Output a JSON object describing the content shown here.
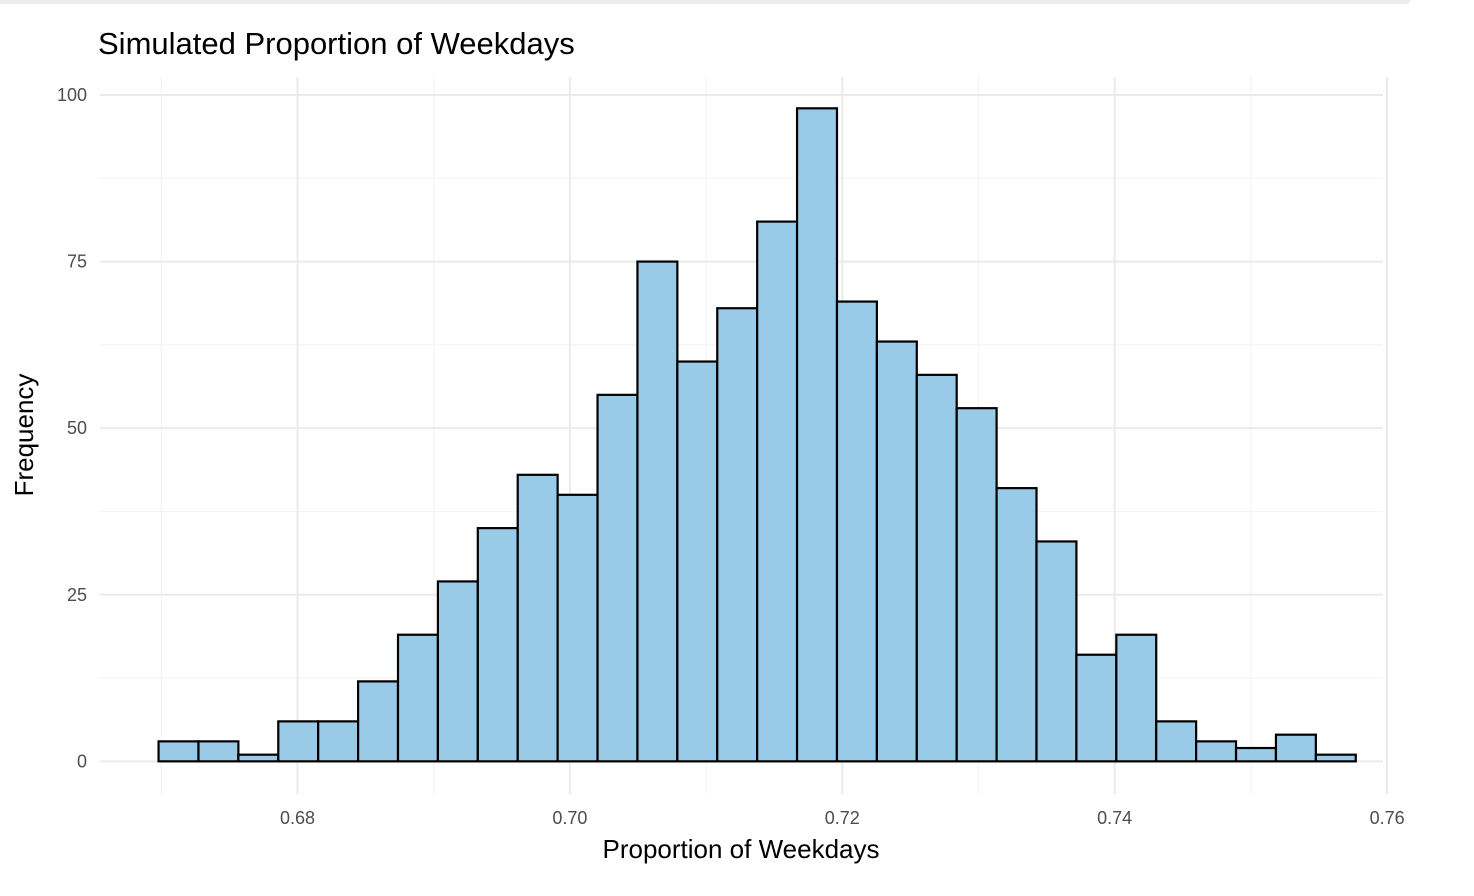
{
  "chart_data": {
    "type": "bar",
    "title": "Simulated Proportion of Weekdays",
    "xlabel": "Proportion of Weekdays",
    "ylabel": "Frequency",
    "xlim": [
      0.6655,
      0.7597
    ],
    "ylim": [
      -4.9,
      102.7
    ],
    "x_ticks": [
      0.68,
      0.7,
      0.72,
      0.74,
      0.76
    ],
    "x_tick_labels": [
      "0.68",
      "0.70",
      "0.72",
      "0.74",
      "0.76"
    ],
    "y_ticks": [
      0,
      25,
      50,
      75,
      100
    ],
    "y_tick_labels": [
      "0",
      "25",
      "50",
      "75",
      "100"
    ],
    "bin_width": 0.00293,
    "bin_start": 0.6698,
    "values": [
      3,
      3,
      1,
      6,
      6,
      12,
      19,
      27,
      35,
      43,
      40,
      55,
      75,
      60,
      68,
      81,
      98,
      69,
      63,
      58,
      53,
      41,
      33,
      16,
      19,
      6,
      3,
      2,
      4,
      1
    ],
    "grid": true,
    "legend": "none",
    "colors": {
      "bar_fill": "#99cbe9",
      "bar_outline": "#000000",
      "grid": "#ebebeb"
    }
  }
}
